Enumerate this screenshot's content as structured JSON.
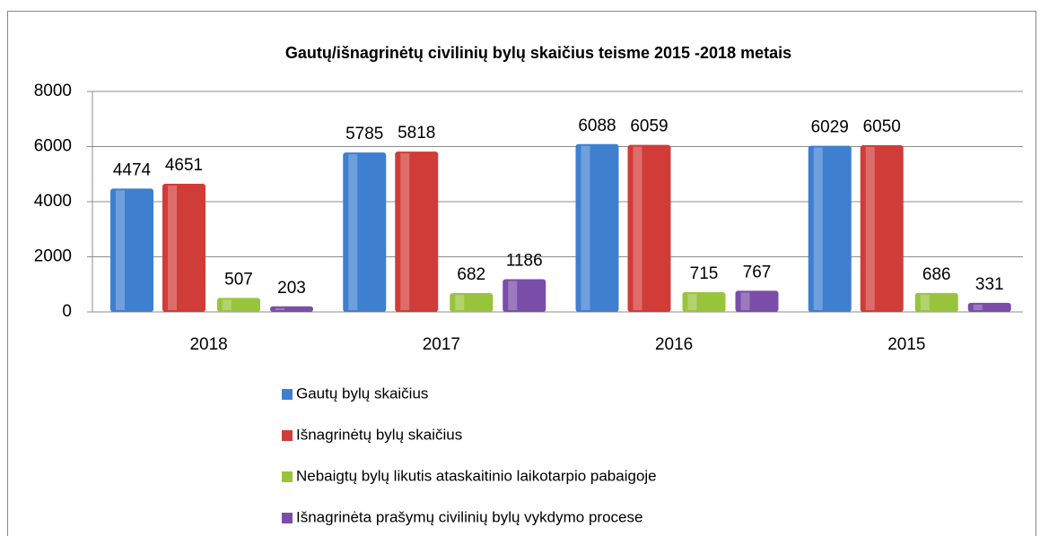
{
  "chart_data": {
    "type": "bar",
    "title": "Gautų/išnagrinėtų civilinių bylų skaičius teisme 2015 -2018 metais",
    "categories": [
      "2018",
      "2017",
      "2016",
      "2015"
    ],
    "series": [
      {
        "name": "Gautų bylų skaičius",
        "color": "#3f7fd0",
        "values": [
          4474,
          5785,
          6088,
          6029
        ]
      },
      {
        "name": "Išnagrinėtų bylų skaičius",
        "color": "#d03c38",
        "values": [
          4651,
          5818,
          6059,
          6050
        ]
      },
      {
        "name": "Nebaigtų bylų likutis ataskaitinio laikotarpio pabaigoje",
        "color": "#98c43c",
        "values": [
          507,
          682,
          715,
          686
        ]
      },
      {
        "name": "Išnagrinėta prašymų civilinių bylų vykdymo procese",
        "color": "#7a4ea8",
        "values": [
          203,
          1186,
          767,
          331
        ]
      }
    ],
    "ylim": [
      0,
      8000
    ],
    "yticks": [
      0,
      2000,
      4000,
      6000,
      8000
    ],
    "grid": true
  }
}
